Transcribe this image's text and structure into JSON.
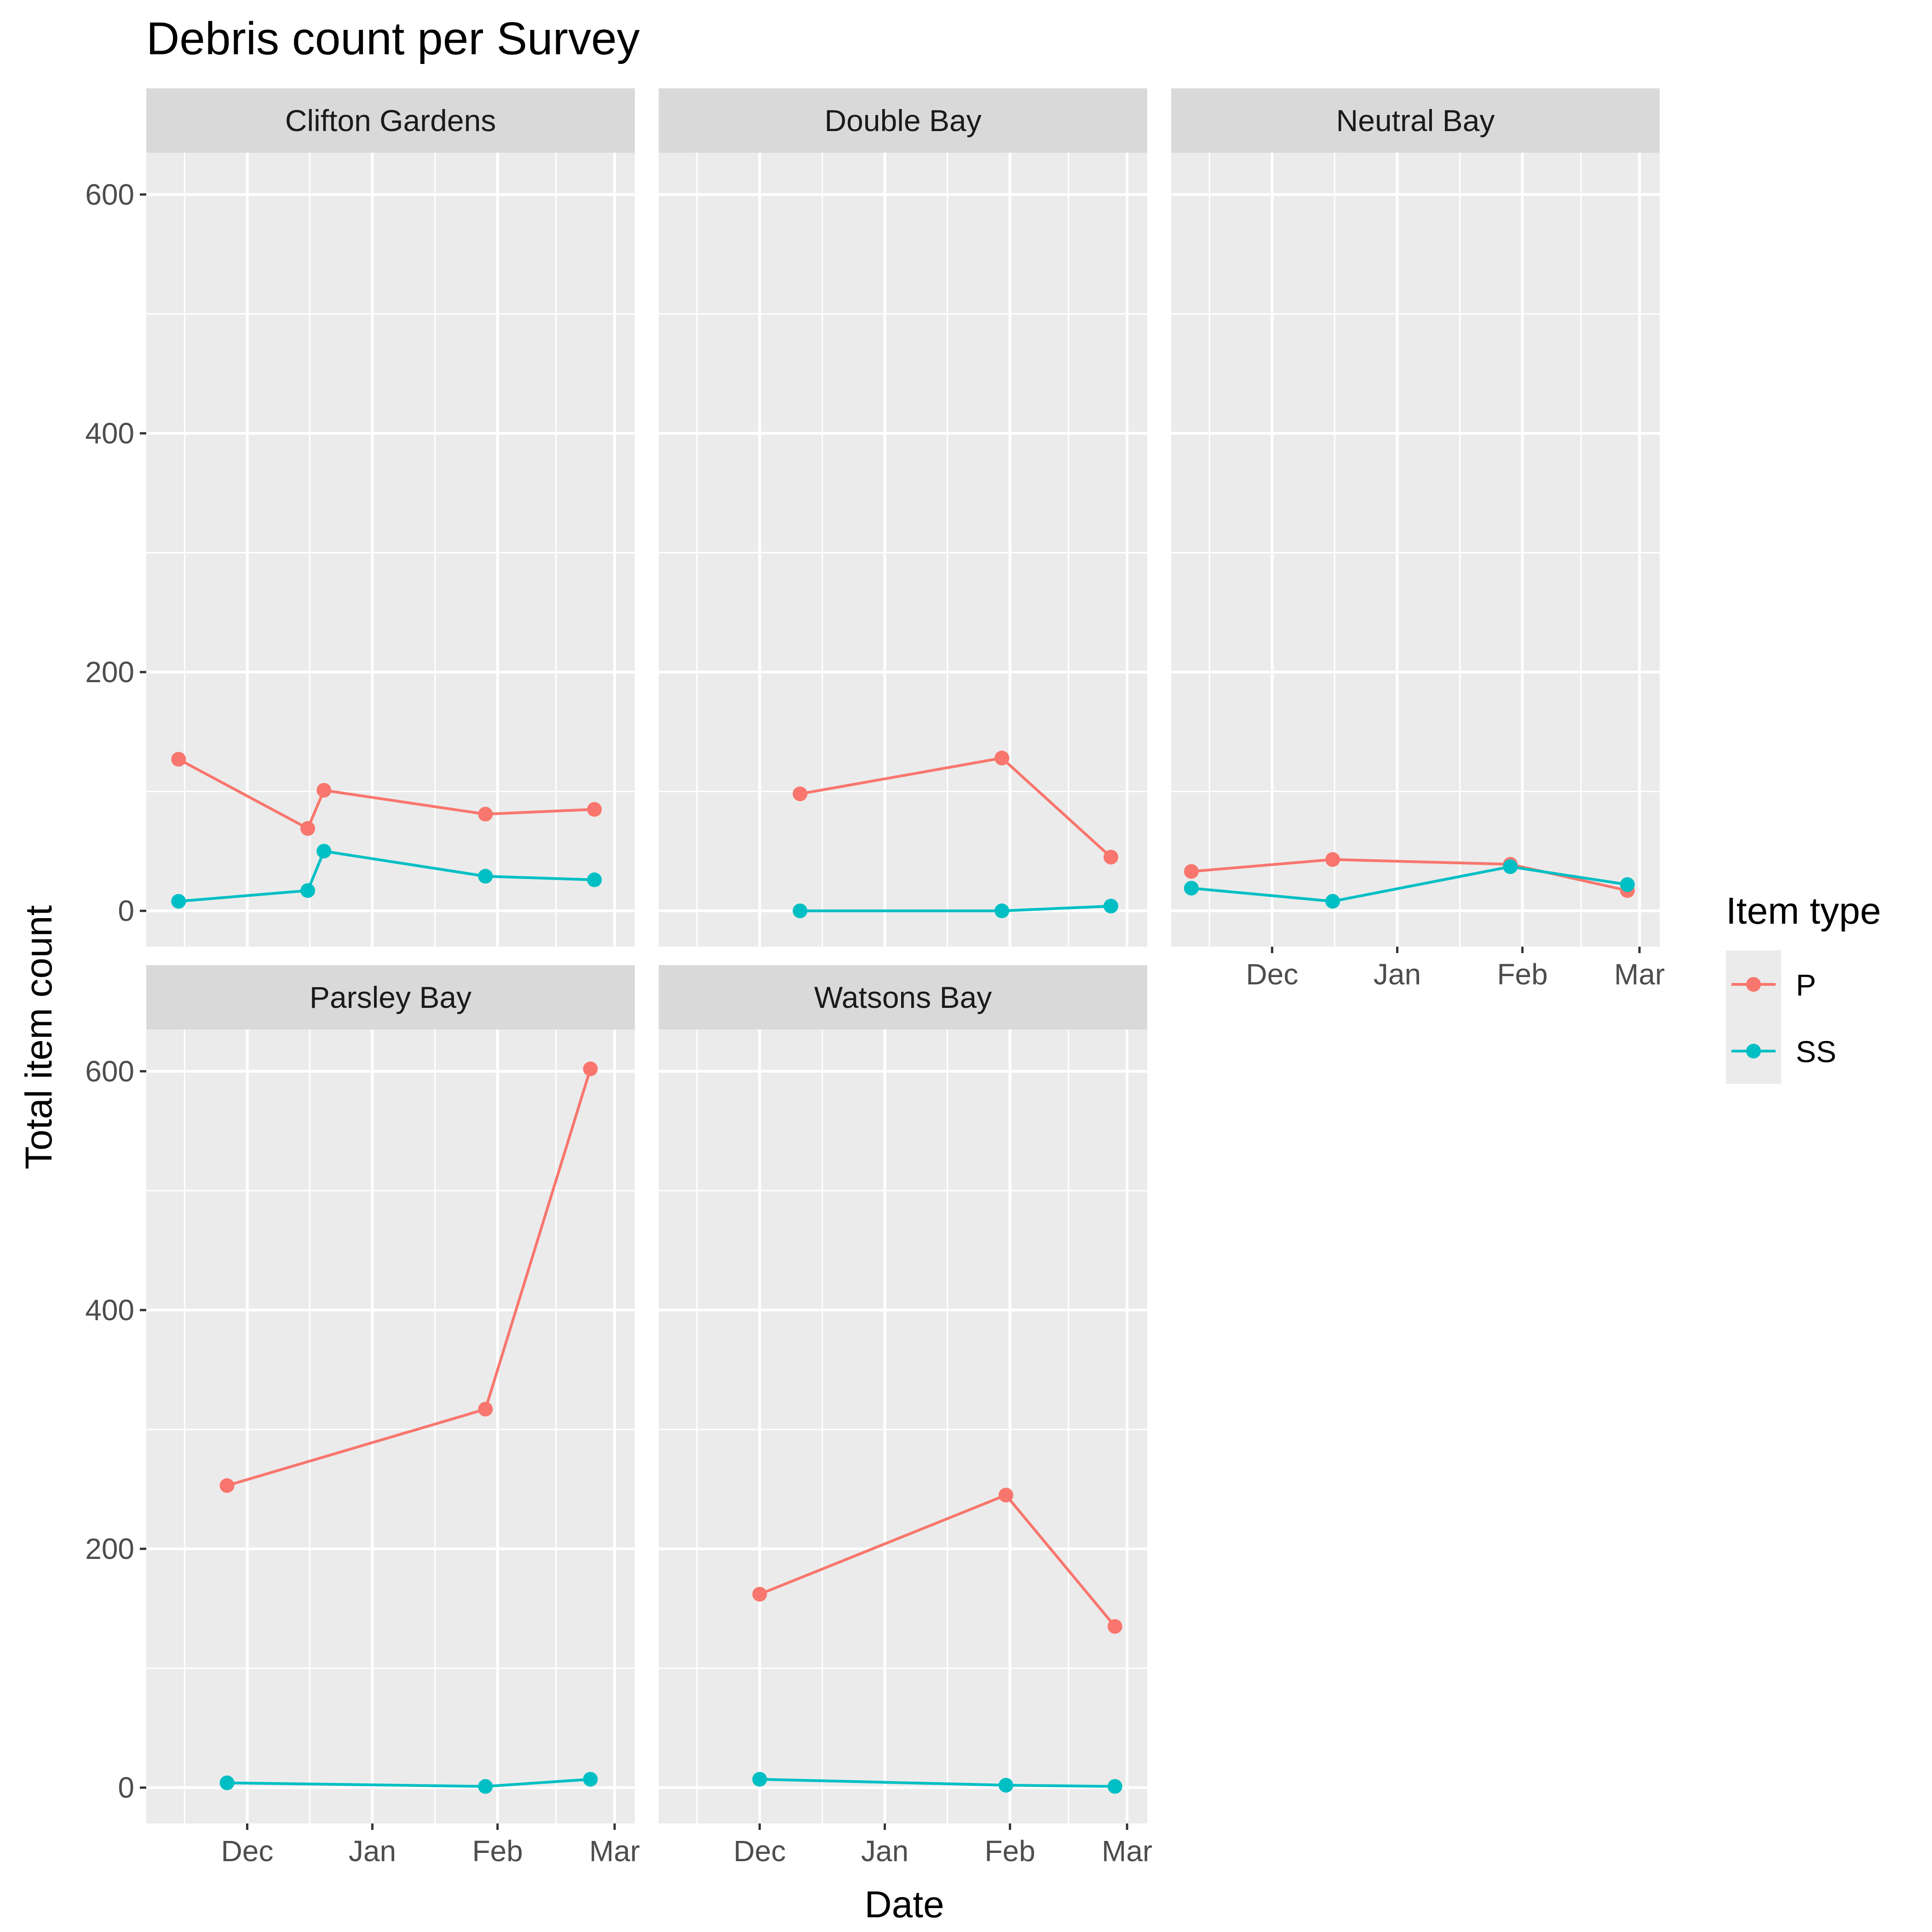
{
  "chart_data": {
    "type": "line",
    "title": "Debris count per Survey",
    "xlabel": "Date",
    "ylabel": "Total item count",
    "x_ticks": [
      "Dec",
      "Jan",
      "Feb",
      "Mar"
    ],
    "x_tick_dates": [
      "2019-12-01",
      "2020-01-01",
      "2020-02-01",
      "2020-03-01"
    ],
    "xlim": [
      "2019-11-06",
      "2020-03-06"
    ],
    "y_ticks": [
      0,
      200,
      400,
      600
    ],
    "ylim": [
      -30,
      635
    ],
    "grid": true,
    "legend": {
      "title": "Item type",
      "position": "right",
      "entries": [
        {
          "name": "P",
          "color": "#F8766D"
        },
        {
          "name": "SS",
          "color": "#00BFC4"
        }
      ]
    },
    "facets": [
      {
        "panel": "Clifton Gardens",
        "series": [
          {
            "name": "P",
            "color": "#F8766D",
            "points": [
              {
                "x": "2019-11-14",
                "y": 127
              },
              {
                "x": "2019-12-16",
                "y": 69
              },
              {
                "x": "2019-12-20",
                "y": 101
              },
              {
                "x": "2020-01-29",
                "y": 81
              },
              {
                "x": "2020-02-25",
                "y": 85
              }
            ]
          },
          {
            "name": "SS",
            "color": "#00BFC4",
            "points": [
              {
                "x": "2019-11-14",
                "y": 8
              },
              {
                "x": "2019-12-16",
                "y": 17
              },
              {
                "x": "2019-12-20",
                "y": 50
              },
              {
                "x": "2020-01-29",
                "y": 29
              },
              {
                "x": "2020-02-25",
                "y": 26
              }
            ]
          }
        ]
      },
      {
        "panel": "Double Bay",
        "series": [
          {
            "name": "P",
            "color": "#F8766D",
            "points": [
              {
                "x": "2019-12-11",
                "y": 98
              },
              {
                "x": "2020-01-30",
                "y": 128
              },
              {
                "x": "2020-02-26",
                "y": 45
              }
            ]
          },
          {
            "name": "SS",
            "color": "#00BFC4",
            "points": [
              {
                "x": "2019-12-11",
                "y": 0
              },
              {
                "x": "2020-01-30",
                "y": 0
              },
              {
                "x": "2020-02-26",
                "y": 4
              }
            ]
          }
        ]
      },
      {
        "panel": "Neutral Bay",
        "series": [
          {
            "name": "P",
            "color": "#F8766D",
            "points": [
              {
                "x": "2019-11-11",
                "y": 33
              },
              {
                "x": "2019-12-16",
                "y": 43
              },
              {
                "x": "2020-01-29",
                "y": 39
              },
              {
                "x": "2020-02-27",
                "y": 17
              }
            ]
          },
          {
            "name": "SS",
            "color": "#00BFC4",
            "points": [
              {
                "x": "2019-11-11",
                "y": 19
              },
              {
                "x": "2019-12-16",
                "y": 8
              },
              {
                "x": "2020-01-29",
                "y": 37
              },
              {
                "x": "2020-02-27",
                "y": 22
              }
            ]
          }
        ]
      },
      {
        "panel": "Parsley Bay",
        "series": [
          {
            "name": "P",
            "color": "#F8766D",
            "points": [
              {
                "x": "2019-11-26",
                "y": 253
              },
              {
                "x": "2020-01-29",
                "y": 317
              },
              {
                "x": "2020-02-24",
                "y": 602
              }
            ]
          },
          {
            "name": "SS",
            "color": "#00BFC4",
            "points": [
              {
                "x": "2019-11-26",
                "y": 4
              },
              {
                "x": "2020-01-29",
                "y": 1
              },
              {
                "x": "2020-02-24",
                "y": 7
              }
            ]
          }
        ]
      },
      {
        "panel": "Watsons Bay",
        "series": [
          {
            "name": "P",
            "color": "#F8766D",
            "points": [
              {
                "x": "2019-12-01",
                "y": 162
              },
              {
                "x": "2020-01-31",
                "y": 245
              },
              {
                "x": "2020-02-27",
                "y": 135
              }
            ]
          },
          {
            "name": "SS",
            "color": "#00BFC4",
            "points": [
              {
                "x": "2019-12-01",
                "y": 7
              },
              {
                "x": "2020-01-31",
                "y": 2
              },
              {
                "x": "2020-02-27",
                "y": 1
              }
            ]
          }
        ]
      }
    ]
  }
}
